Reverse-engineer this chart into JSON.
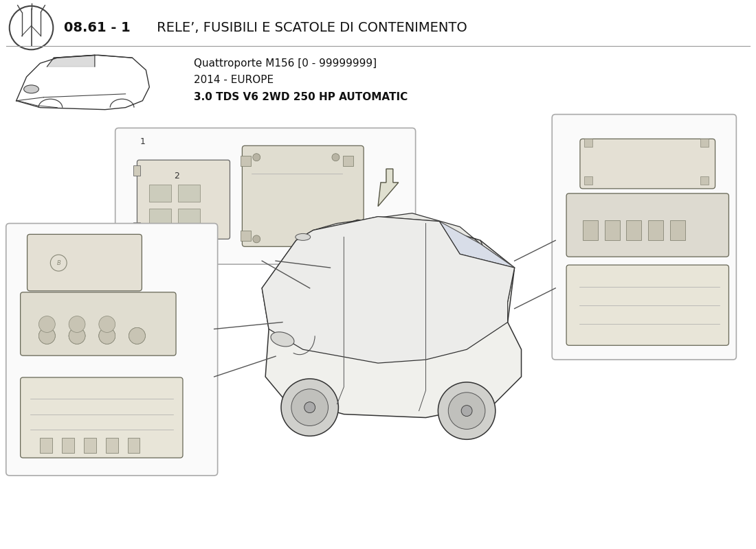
{
  "title_bold": "08.61 - 1",
  "title_regular": " RELE’, FUSIBILI E SCATOLE DI CONTENIMENTO",
  "subtitle_line1": "Quattroporte M156 [0 - 99999999]",
  "subtitle_line2": "2014 - EUROPE",
  "subtitle_line3": "3.0 TDS V6 2WD 250 HP AUTOMATIC",
  "bg_color": "#ffffff",
  "box_fill": "#ffffff",
  "box_edge": "#999999",
  "part_fill": "#e8e8e0",
  "line_color": "#555555",
  "dark_line": "#333333"
}
